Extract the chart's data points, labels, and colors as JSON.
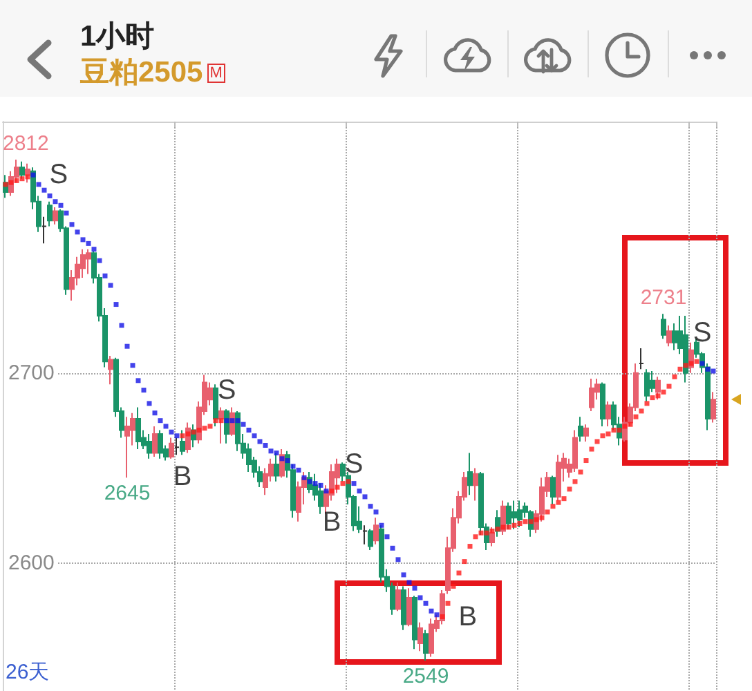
{
  "chart_data": {
    "type": "candlestick",
    "title": "1小时",
    "subtitle": "豆粕2505",
    "annotations": [
      "M",
      "26天"
    ],
    "categories": [
      null,
      null,
      null,
      null,
      null,
      null,
      null,
      null,
      null,
      null,
      null,
      null,
      null,
      null,
      null,
      null,
      null,
      null,
      null,
      null,
      null,
      null,
      null,
      null,
      null,
      null,
      null,
      null,
      null,
      null,
      null,
      null,
      null,
      null,
      null,
      null,
      null,
      null,
      null,
      null,
      null,
      null,
      null,
      null,
      null,
      null,
      null,
      null,
      null,
      null,
      null,
      null,
      null,
      null,
      null,
      null,
      null,
      null,
      null,
      null,
      null,
      null,
      null,
      null,
      null,
      null,
      null,
      null,
      null,
      null,
      null,
      null,
      null,
      null,
      null,
      null,
      null,
      null,
      null,
      null,
      null,
      null,
      null,
      null,
      null,
      null,
      null,
      null,
      null,
      null,
      null,
      null,
      null,
      null,
      null,
      null,
      null,
      null,
      null,
      null,
      null,
      null,
      null,
      null,
      null,
      null,
      null,
      null,
      null,
      null,
      null,
      null,
      null,
      null,
      null,
      null,
      null,
      null,
      null,
      null,
      null,
      null,
      null,
      null,
      null,
      null,
      null,
      null,
      null
    ],
    "ylim": [
      2533,
      2832
    ],
    "yticks": [
      2600,
      2700
    ],
    "grid": true,
    "tick_labels": "y",
    "series": [
      {
        "type": "candlestick",
        "ohlc": [
          [
            2800,
            2804,
            2792,
            2795
          ],
          [
            2795,
            2806,
            2793,
            2803
          ],
          [
            2803,
            2812,
            2800,
            2808
          ],
          [
            2808,
            2811,
            2802,
            2804
          ],
          [
            2804,
            2810,
            2800,
            2807
          ],
          [
            2806,
            2808,
            2786,
            2790
          ],
          [
            2790,
            2793,
            2774,
            2777
          ],
          [
            2777,
            2782,
            2768,
            2777
          ],
          [
            2788,
            2790,
            2777,
            2780
          ],
          [
            2780,
            2787,
            2778,
            2785
          ],
          [
            2785,
            2786,
            2774,
            2776
          ],
          [
            2776,
            2777,
            2741,
            2744
          ],
          [
            2744,
            2754,
            2738,
            2750
          ],
          [
            2750,
            2761,
            2746,
            2757
          ],
          [
            2755,
            2765,
            2750,
            2762
          ],
          [
            2760,
            2765,
            2752,
            2763
          ],
          [
            2763,
            2764,
            2747,
            2750
          ],
          [
            2750,
            2752,
            2727,
            2730
          ],
          [
            2730,
            2734,
            2703,
            2706
          ],
          [
            2702,
            2709,
            2694,
            2707
          ],
          [
            2707,
            2708,
            2677,
            2680
          ],
          [
            2680,
            2682,
            2666,
            2670
          ],
          [
            2667,
            2677,
            2645,
            2672
          ],
          [
            2670,
            2679,
            2662,
            2676
          ],
          [
            2676,
            2682,
            2660,
            2664
          ],
          [
            2666,
            2670,
            2660,
            2662
          ],
          [
            2664,
            2668,
            2655,
            2658
          ],
          [
            2658,
            2672,
            2656,
            2668
          ],
          [
            2668,
            2670,
            2655,
            2658
          ],
          [
            2660,
            2662,
            2654,
            2656
          ],
          [
            2656,
            2666,
            2655,
            2663
          ],
          [
            2661,
            2666,
            2657,
            2661
          ],
          [
            2664,
            2670,
            2657,
            2659
          ],
          [
            2660,
            2674,
            2658,
            2671
          ],
          [
            2670,
            2673,
            2661,
            2665
          ],
          [
            2665,
            2685,
            2663,
            2682
          ],
          [
            2680,
            2699,
            2678,
            2695
          ],
          [
            2686,
            2695,
            2683,
            2692
          ],
          [
            2692,
            2694,
            2672,
            2676
          ],
          [
            2676,
            2682,
            2663,
            2680
          ],
          [
            2680,
            2681,
            2663,
            2668
          ],
          [
            2668,
            2682,
            2667,
            2679
          ],
          [
            2679,
            2680,
            2659,
            2663
          ],
          [
            2663,
            2668,
            2655,
            2658
          ],
          [
            2660,
            2663,
            2648,
            2652
          ],
          [
            2654,
            2656,
            2645,
            2648
          ],
          [
            2648,
            2651,
            2640,
            2643
          ],
          [
            2640,
            2650,
            2636,
            2647
          ],
          [
            2646,
            2655,
            2643,
            2652
          ],
          [
            2652,
            2658,
            2643,
            2646
          ],
          [
            2646,
            2660,
            2645,
            2657
          ],
          [
            2657,
            2659,
            2645,
            2649
          ],
          [
            2649,
            2652,
            2624,
            2628
          ],
          [
            2627,
            2643,
            2622,
            2640
          ],
          [
            2640,
            2648,
            2631,
            2645
          ],
          [
            2645,
            2648,
            2637,
            2639
          ],
          [
            2641,
            2647,
            2633,
            2636
          ],
          [
            2638,
            2642,
            2626,
            2630
          ],
          [
            2630,
            2641,
            2626,
            2638
          ],
          [
            2636,
            2652,
            2633,
            2648
          ],
          [
            2645,
            2655,
            2637,
            2652
          ],
          [
            2652,
            2653,
            2643,
            2646
          ],
          [
            2646,
            2648,
            2631,
            2635
          ],
          [
            2635,
            2636,
            2617,
            2620
          ],
          [
            2622,
            2630,
            2616,
            2618
          ],
          [
            2617,
            2620,
            2610,
            2617
          ],
          [
            2617,
            2618,
            2607,
            2609
          ],
          [
            2612,
            2624,
            2610,
            2620
          ],
          [
            2618,
            2620,
            2590,
            2593
          ],
          [
            2593,
            2597,
            2585,
            2588
          ],
          [
            2588,
            2590,
            2573,
            2576
          ],
          [
            2576,
            2590,
            2575,
            2586
          ],
          [
            2586,
            2588,
            2565,
            2568
          ],
          [
            2568,
            2587,
            2567,
            2582
          ],
          [
            2582,
            2583,
            2555,
            2560
          ],
          [
            2558,
            2569,
            2554,
            2566
          ],
          [
            2563,
            2565,
            2549,
            2553
          ],
          [
            2553,
            2571,
            2551,
            2568
          ],
          [
            2566,
            2573,
            2564,
            2570
          ],
          [
            2570,
            2586,
            2568,
            2584
          ],
          [
            2586,
            2614,
            2584,
            2608
          ],
          [
            2608,
            2629,
            2606,
            2624
          ],
          [
            2624,
            2638,
            2621,
            2635
          ],
          [
            2635,
            2648,
            2633,
            2645
          ],
          [
            2648,
            2658,
            2636,
            2641
          ],
          [
            2641,
            2650,
            2633,
            2647
          ],
          [
            2647,
            2648,
            2615,
            2619
          ],
          [
            2619,
            2621,
            2607,
            2611
          ],
          [
            2611,
            2619,
            2609,
            2616
          ],
          [
            2624,
            2628,
            2614,
            2617
          ],
          [
            2617,
            2633,
            2615,
            2630
          ],
          [
            2630,
            2632,
            2618,
            2621
          ],
          [
            2627,
            2633,
            2618,
            2624
          ],
          [
            2628,
            2633,
            2619,
            2623
          ],
          [
            2630,
            2632,
            2624,
            2627
          ],
          [
            2627,
            2628,
            2614,
            2618
          ],
          [
            2618,
            2628,
            2616,
            2626
          ],
          [
            2626,
            2645,
            2622,
            2640
          ],
          [
            2638,
            2648,
            2635,
            2645
          ],
          [
            2645,
            2646,
            2631,
            2635
          ],
          [
            2635,
            2657,
            2633,
            2653
          ],
          [
            2650,
            2658,
            2643,
            2655
          ],
          [
            2648,
            2655,
            2645,
            2652
          ],
          [
            2650,
            2670,
            2648,
            2666
          ],
          [
            2672,
            2677,
            2664,
            2667
          ],
          [
            2667,
            2673,
            2664,
            2671
          ],
          [
            2682,
            2697,
            2680,
            2692
          ],
          [
            2690,
            2697,
            2686,
            2694
          ],
          [
            2694,
            2695,
            2672,
            2676
          ],
          [
            2676,
            2685,
            2672,
            2683
          ],
          [
            2683,
            2685,
            2670,
            2673
          ],
          [
            2673,
            2677,
            2662,
            2666
          ],
          [
            2665,
            2677,
            2664,
            2674
          ],
          [
            2674,
            2684,
            2672,
            2682
          ],
          [
            2682,
            2705,
            2680,
            2700
          ],
          [
            2705,
            2713,
            2702,
            2705
          ],
          [
            2700,
            2702,
            2685,
            2688
          ],
          [
            2696,
            2701,
            2690,
            2692
          ],
          [
            2690,
            2698,
            2686,
            2696
          ],
          [
            2728,
            2731,
            2718,
            2720
          ],
          [
            2716,
            2725,
            2714,
            2722
          ],
          [
            2722,
            2726,
            2712,
            2716
          ],
          [
            2722,
            2730,
            2710,
            2713
          ],
          [
            2720,
            2730,
            2695,
            2700
          ],
          [
            2703,
            2716,
            2700,
            2712
          ],
          [
            2716,
            2718,
            2708,
            2710
          ],
          [
            2710,
            2711,
            2700,
            2703
          ],
          [
            2703,
            2705,
            2670,
            2676
          ],
          [
            2676,
            2690,
            2674,
            2686
          ]
        ],
        "colors": [
          "#1a9468",
          "#e8606e",
          "#e8606e",
          "#1a9468",
          "#e8606e",
          "#1a9468",
          "#1a9468",
          "#333333",
          "#1a9468",
          "#e8606e",
          "#1a9468",
          "#1a9468",
          "#e8606e",
          "#e8606e",
          "#e8606e",
          "#e8606e",
          "#1a9468",
          "#1a9468",
          "#1a9468",
          "#e8606e",
          "#1a9468",
          "#1a9468",
          "#e8606e",
          "#e8606e",
          "#1a9468",
          "#1a9468",
          "#1a9468",
          "#e8606e",
          "#1a9468",
          "#1a9468",
          "#e8606e",
          "#333333",
          "#1a9468",
          "#e8606e",
          "#1a9468",
          "#e8606e",
          "#e8606e",
          "#e8606e",
          "#1a9468",
          "#e8606e",
          "#1a9468",
          "#e8606e",
          "#1a9468",
          "#1a9468",
          "#1a9468",
          "#1a9468",
          "#1a9468",
          "#e8606e",
          "#e8606e",
          "#1a9468",
          "#e8606e",
          "#1a9468",
          "#1a9468",
          "#e8606e",
          "#e8606e",
          "#1a9468",
          "#1a9468",
          "#1a9468",
          "#e8606e",
          "#e8606e",
          "#e8606e",
          "#1a9468",
          "#1a9468",
          "#1a9468",
          "#1a9468",
          "#333333",
          "#1a9468",
          "#e8606e",
          "#1a9468",
          "#1a9468",
          "#1a9468",
          "#e8606e",
          "#1a9468",
          "#e8606e",
          "#1a9468",
          "#e8606e",
          "#1a9468",
          "#e8606e",
          "#e8606e",
          "#e8606e",
          "#e8606e",
          "#e8606e",
          "#e8606e",
          "#e8606e",
          "#1a9468",
          "#e8606e",
          "#1a9468",
          "#1a9468",
          "#e8606e",
          "#1a9468",
          "#e8606e",
          "#1a9468",
          "#1a9468",
          "#1a9468",
          "#1a9468",
          "#1a9468",
          "#e8606e",
          "#e8606e",
          "#e8606e",
          "#1a9468",
          "#e8606e",
          "#e8606e",
          "#e8606e",
          "#e8606e",
          "#1a9468",
          "#e8606e",
          "#e8606e",
          "#e8606e",
          "#1a9468",
          "#e8606e",
          "#1a9468",
          "#1a9468",
          "#e8606e",
          "#e8606e",
          "#e8606e",
          "#333333",
          "#1a9468",
          "#1a9468",
          "#e8606e",
          "#1a9468",
          "#e8606e",
          "#1a9468",
          "#1a9468",
          "#1a9468",
          "#e8606e",
          "#1a9468",
          "#1a9468",
          "#1a9468",
          "#e8606e"
        ],
        "value_labels": [
          null,
          null,
          "2812",
          null,
          null,
          null,
          null,
          null,
          null,
          null,
          null,
          null,
          null,
          null,
          null,
          null,
          null,
          null,
          null,
          null,
          null,
          null,
          "2645",
          null,
          null,
          null,
          null,
          null,
          null,
          null,
          null,
          null,
          null,
          null,
          null,
          null,
          null,
          null,
          null,
          null,
          null,
          null,
          null,
          null,
          null,
          null,
          null,
          null,
          null,
          null,
          null,
          null,
          null,
          null,
          null,
          null,
          null,
          null,
          null,
          null,
          null,
          null,
          null,
          null,
          null,
          null,
          null,
          null,
          null,
          null,
          null,
          null,
          null,
          null,
          null,
          null,
          "2549",
          null,
          null,
          null,
          null,
          null,
          null,
          null,
          null,
          null,
          null,
          null,
          null,
          null,
          null,
          null,
          null,
          null,
          null,
          null,
          null,
          null,
          null,
          null,
          null,
          null,
          null,
          null,
          null,
          null,
          null,
          null,
          null,
          null,
          null,
          null,
          null,
          null,
          null,
          null,
          null,
          null,
          null,
          "2731",
          null,
          null,
          null,
          null,
          null,
          null,
          null,
          null,
          null
        ]
      },
      {
        "type": "scatter",
        "color": "#1414e6",
        "marker": "square",
        "values": [
          null,
          null,
          null,
          null,
          null,
          2804,
          2799,
          2796,
          2793,
          2790,
          2788,
          2784,
          2778,
          2774,
          2770,
          2768,
          2765,
          2759,
          2751,
          2746,
          2736,
          2725,
          2714,
          2704,
          2696,
          2691,
          2684,
          2679,
          2675,
          2672,
          2669,
          2667,
          null,
          null,
          null,
          null,
          null,
          null,
          null,
          null,
          2675,
          2675,
          2675,
          2673,
          2670,
          2667,
          2664,
          2662,
          2659,
          2658,
          2655,
          2654,
          2651,
          2649,
          2645,
          2643,
          2642,
          2641,
          2638,
          null,
          null,
          null,
          null,
          2642,
          2638,
          2635,
          2630,
          2627,
          2620,
          2614,
          2608,
          2602,
          2594,
          2590,
          2587,
          2582,
          2579,
          2575,
          2573,
          null,
          null,
          null,
          null,
          null,
          null,
          null,
          null,
          null,
          null,
          null,
          null,
          null,
          null,
          null,
          null,
          null,
          null,
          null,
          null,
          null,
          null,
          null,
          null,
          null,
          null,
          null,
          null,
          null,
          null,
          null,
          null,
          null,
          null,
          null,
          null,
          null,
          null,
          null,
          null,
          null,
          null,
          null,
          null,
          null,
          null,
          null,
          2705,
          2702,
          2701
        ],
        "value_labels": [
          null,
          null,
          null,
          null,
          null,
          "S",
          null,
          null,
          null,
          null,
          null,
          null,
          null,
          null,
          null,
          null,
          null,
          null,
          null,
          null,
          null,
          null,
          null,
          null,
          null,
          null,
          null,
          null,
          null,
          null,
          null,
          null,
          null,
          null,
          null,
          null,
          null,
          null,
          null,
          null,
          "S",
          null,
          null,
          null,
          null,
          null,
          null,
          null,
          null,
          null,
          null,
          null,
          null,
          null,
          null,
          null,
          null,
          null,
          null,
          null,
          null,
          null,
          null,
          "S",
          null,
          null,
          null,
          null,
          null,
          null,
          null,
          null,
          null,
          null,
          null,
          null,
          null,
          null,
          null,
          null,
          null,
          null,
          null,
          null,
          null,
          null,
          null,
          null,
          null,
          null,
          null,
          null,
          null,
          null,
          null,
          null,
          null,
          null,
          null,
          null,
          null,
          null,
          null,
          null,
          null,
          null,
          null,
          null,
          null,
          null,
          null,
          null,
          null,
          null,
          null,
          null,
          null,
          null,
          null,
          null,
          null,
          null,
          null,
          null,
          null,
          null,
          "S",
          null,
          null
        ]
      },
      {
        "type": "scatter",
        "color": "#ff1a1a",
        "marker": "square",
        "values": [
          2799,
          2800,
          2801,
          2802,
          2803,
          null,
          null,
          null,
          null,
          null,
          null,
          null,
          null,
          null,
          null,
          null,
          null,
          null,
          null,
          null,
          null,
          null,
          null,
          null,
          null,
          null,
          null,
          null,
          null,
          null,
          null,
          null,
          2667,
          2668,
          2669,
          2670,
          2671,
          2672,
          2675,
          2675,
          null,
          null,
          null,
          null,
          null,
          null,
          null,
          null,
          null,
          null,
          null,
          null,
          null,
          null,
          null,
          null,
          null,
          null,
          null,
          2638,
          2640,
          2642,
          2643,
          null,
          null,
          null,
          null,
          null,
          null,
          null,
          null,
          null,
          null,
          null,
          null,
          null,
          null,
          null,
          null,
          2572,
          2579,
          2588,
          2595,
          2601,
          2609,
          2614,
          2616,
          2616,
          2617,
          2618,
          2619,
          2619,
          2620,
          2621,
          2622,
          2622,
          2623,
          2624,
          2627,
          2630,
          2632,
          2634,
          2639,
          2643,
          2648,
          2654,
          2660,
          2664,
          2667,
          2668,
          2670,
          2670,
          2672,
          2673,
          2677,
          2680,
          2684,
          2687,
          2688,
          2690,
          2693,
          2698,
          2702,
          2704,
          2705,
          2706,
          null,
          null,
          null
        ],
        "value_labels": [
          null,
          null,
          null,
          null,
          null,
          null,
          null,
          null,
          null,
          null,
          null,
          null,
          null,
          null,
          null,
          null,
          null,
          null,
          null,
          null,
          null,
          null,
          null,
          null,
          null,
          null,
          null,
          null,
          null,
          null,
          null,
          null,
          "B",
          null,
          null,
          null,
          null,
          null,
          null,
          null,
          null,
          null,
          null,
          null,
          null,
          null,
          null,
          null,
          null,
          null,
          null,
          null,
          null,
          null,
          null,
          null,
          null,
          null,
          null,
          "B",
          null,
          null,
          null,
          null,
          null,
          null,
          null,
          null,
          null,
          null,
          null,
          null,
          null,
          null,
          null,
          null,
          null,
          null,
          null,
          "B",
          null,
          null,
          null,
          null,
          null,
          null,
          null,
          null,
          null,
          null,
          null,
          null,
          null,
          null,
          null,
          null,
          null,
          null,
          null,
          null,
          null,
          null,
          null,
          null,
          null,
          null,
          null,
          null,
          null,
          null,
          null,
          null,
          null,
          null,
          null,
          null,
          null,
          null,
          null,
          null,
          null,
          null,
          null,
          null,
          null,
          null,
          null,
          null,
          null
        ]
      }
    ]
  }
}
